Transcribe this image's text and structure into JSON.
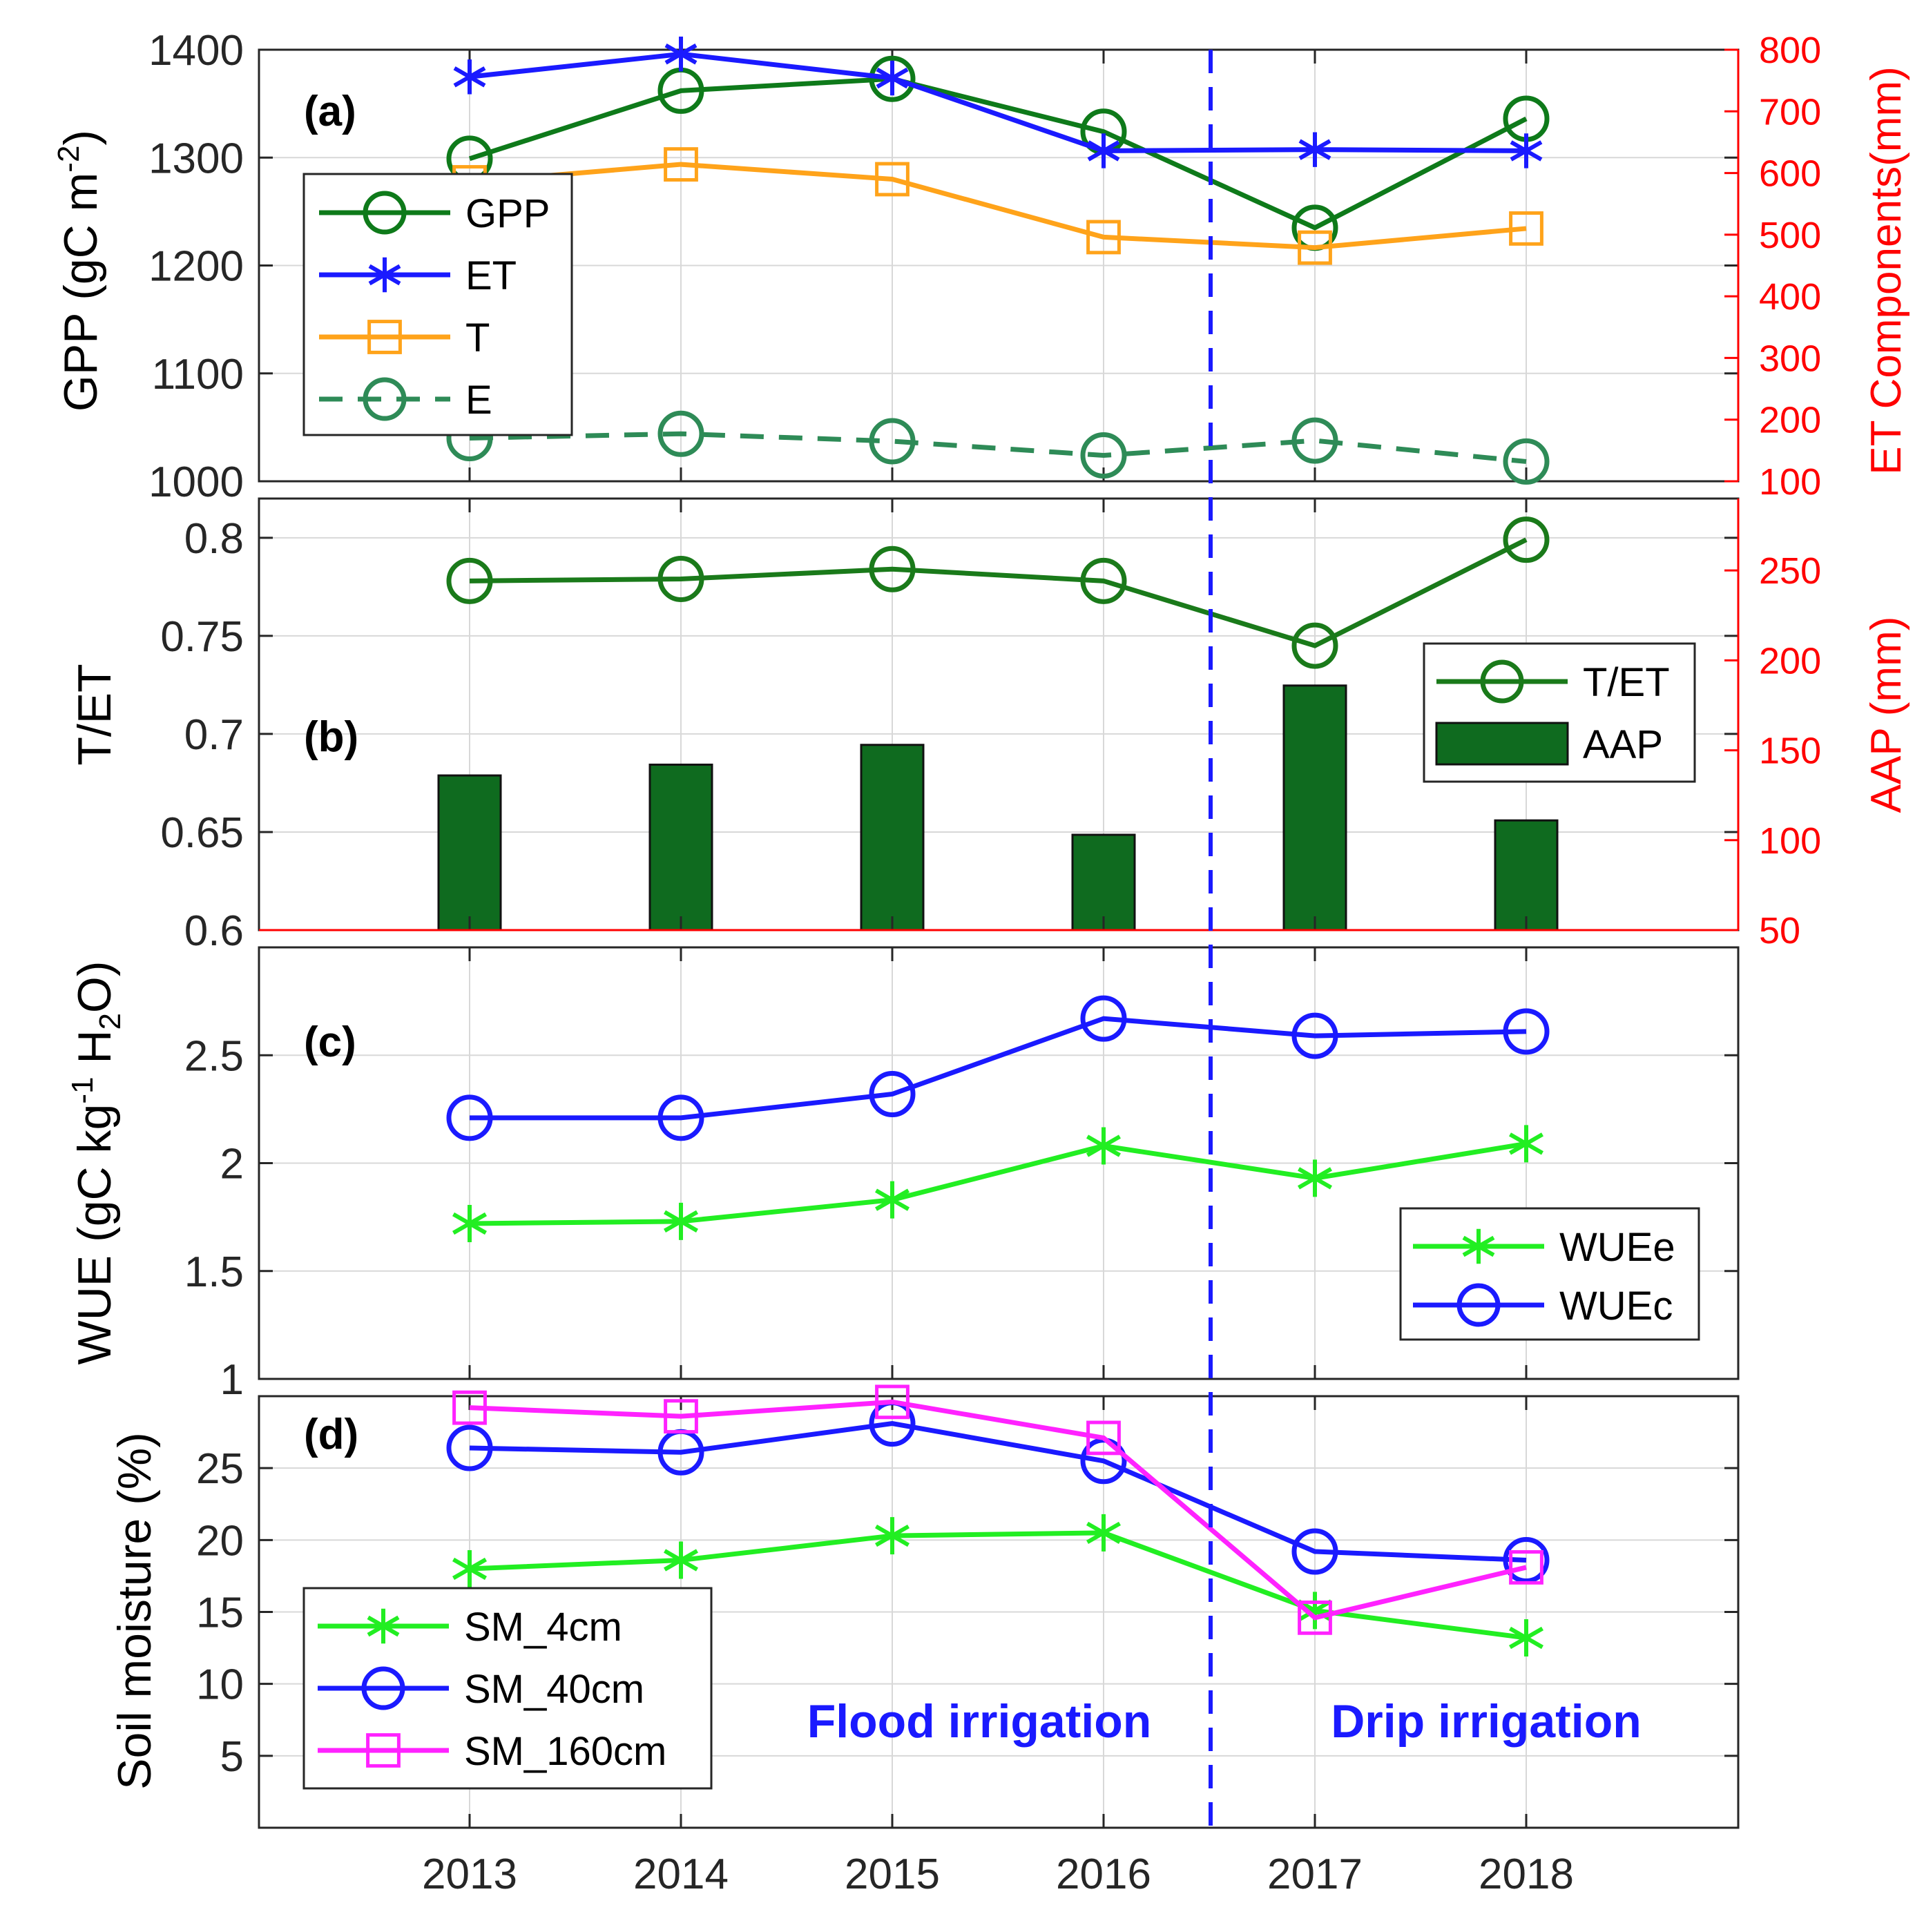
{
  "colors": {
    "gpp": "#0e7a1a",
    "et": "#1a1aff",
    "t": "#ffa31a",
    "e": "#2e8b57",
    "tet": "#1a7a1a",
    "aap": "#0f6b1f",
    "wue_e": "#22ee22",
    "wue_c": "#1a1aff",
    "sm_4": "#22ee22",
    "sm_40": "#1a1aff",
    "sm_160": "#ff22ff",
    "divider": "#1a1aff",
    "right_axis": "#ff0000"
  },
  "annotations": {
    "flood": "Flood irrigation",
    "drip": "Drip irrigation"
  },
  "chart_data": [
    {
      "panel": "(a)",
      "type": "line",
      "categories": [
        "2013",
        "2014",
        "2015",
        "2016",
        "2017",
        "2018"
      ],
      "ylabel": "GPP (gC m-2)",
      "ylabel_parts": {
        "base": "GPP (gC m",
        "sup": "-2",
        "close": ")"
      },
      "ylim": [
        1000,
        1400
      ],
      "yticks": [
        1000,
        1100,
        1200,
        1300,
        1400
      ],
      "y2label": "ET Components(mm)",
      "y2lim": [
        100,
        800
      ],
      "y2ticks": [
        100,
        200,
        300,
        400,
        500,
        600,
        700,
        800
      ],
      "series": [
        {
          "name": "GPP",
          "axis": "left",
          "marker": "circle",
          "style": "solid",
          "values": [
            1299,
            1362,
            1373,
            1324,
            1235,
            1336
          ]
        },
        {
          "name": "ET",
          "axis": "right",
          "marker": "star",
          "style": "solid",
          "values": [
            756,
            793,
            754,
            636,
            638,
            636
          ]
        },
        {
          "name": "T",
          "axis": "right",
          "marker": "square",
          "style": "solid",
          "values": [
            585,
            614,
            590,
            496,
            479,
            510
          ]
        },
        {
          "name": "E",
          "axis": "right",
          "marker": "circle",
          "style": "dashed",
          "values": [
            170,
            177,
            165,
            142,
            166,
            132
          ]
        }
      ],
      "legend": [
        "GPP",
        "ET",
        "T",
        "E"
      ]
    },
    {
      "panel": "(b)",
      "type": "bar+line",
      "categories": [
        "2013",
        "2014",
        "2015",
        "2016",
        "2017",
        "2018"
      ],
      "ylabel": "T/ET",
      "ylim": [
        0.6,
        0.82
      ],
      "yticks": [
        "0.6",
        "0.65",
        "0.7",
        "0.75",
        "0.8"
      ],
      "y2label": "AAP (mm)",
      "y2lim": [
        50,
        290
      ],
      "y2ticks": [
        50,
        100,
        150,
        200,
        250
      ],
      "series": [
        {
          "name": "T/ET",
          "axis": "left",
          "marker": "circle",
          "style": "solid",
          "values": [
            0.778,
            0.779,
            0.784,
            0.778,
            0.745,
            0.799
          ]
        },
        {
          "name": "AAP",
          "axis": "right",
          "kind": "bar",
          "values": [
            136,
            142,
            153,
            103,
            186,
            111
          ]
        }
      ],
      "legend": [
        "T/ET",
        "AAP"
      ]
    },
    {
      "panel": "(c)",
      "type": "line",
      "categories": [
        "2013",
        "2014",
        "2015",
        "2016",
        "2017",
        "2018"
      ],
      "ylabel": "WUE (gC kg-1 H2O)",
      "ylabel_parts": {
        "a": "WUE (gC kg",
        "sup": "-1",
        "b": " H",
        "sub": "2",
        "c": "O)"
      },
      "ylim": [
        1,
        3
      ],
      "yticks": [
        "1",
        "1.5",
        "2",
        "2.5"
      ],
      "series": [
        {
          "name": "WUEe",
          "marker": "star",
          "style": "solid",
          "values": [
            1.72,
            1.73,
            1.83,
            2.08,
            1.93,
            2.09
          ]
        },
        {
          "name": "WUEc",
          "marker": "circle",
          "style": "solid",
          "values": [
            2.21,
            2.21,
            2.32,
            2.67,
            2.59,
            2.61
          ]
        }
      ],
      "legend": [
        "WUEe",
        "WUEc"
      ]
    },
    {
      "panel": "(d)",
      "type": "line",
      "categories": [
        "2013",
        "2014",
        "2015",
        "2016",
        "2017",
        "2018"
      ],
      "ylabel": "Soil moisture (%)",
      "ylim": [
        0,
        30
      ],
      "yticks": [
        5,
        10,
        15,
        20,
        25
      ],
      "series": [
        {
          "name": "SM_4cm",
          "marker": "star",
          "style": "solid",
          "values": [
            18.0,
            18.6,
            20.3,
            20.5,
            15.1,
            13.2
          ]
        },
        {
          "name": "SM_40cm",
          "marker": "circle",
          "style": "solid",
          "values": [
            26.4,
            26.1,
            28.1,
            25.5,
            19.2,
            18.6
          ]
        },
        {
          "name": "SM_160cm",
          "marker": "square",
          "style": "solid",
          "values": [
            29.2,
            28.6,
            29.6,
            27.1,
            14.6,
            18.1
          ]
        }
      ],
      "legend": [
        "SM_4cm",
        "SM_40cm",
        "SM_160cm"
      ]
    }
  ],
  "divider_position": "between 2016 and 2017"
}
